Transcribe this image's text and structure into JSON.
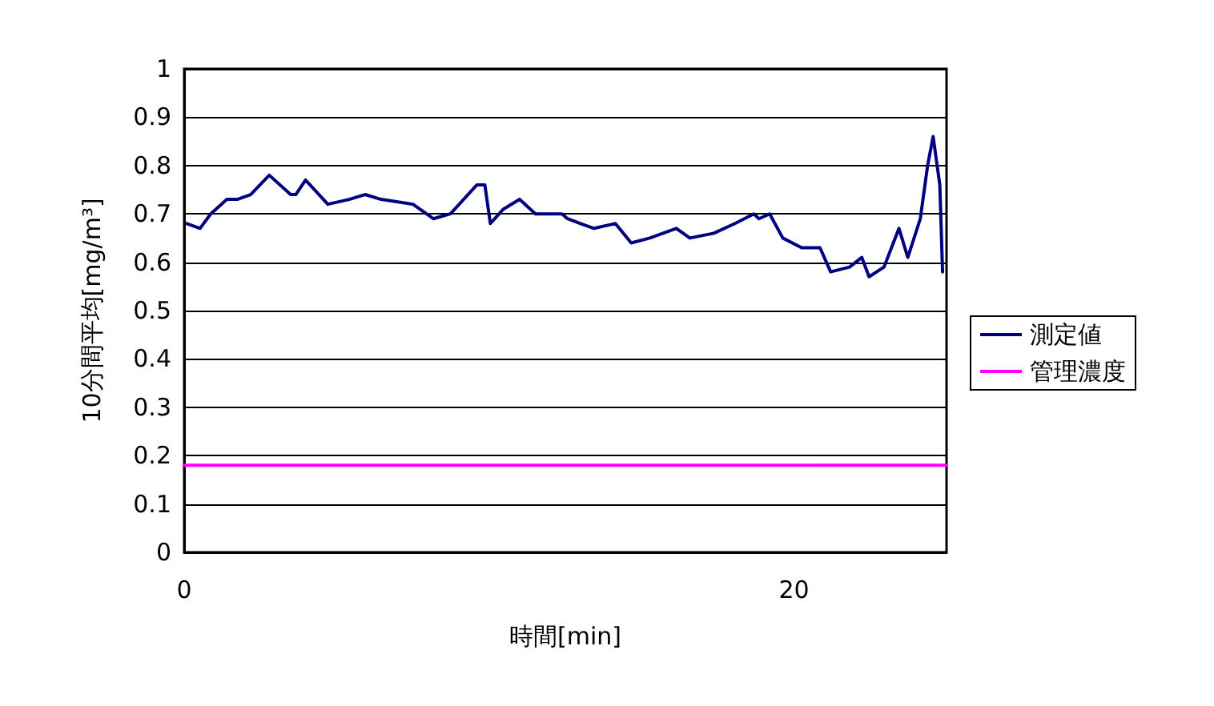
{
  "chart_data": {
    "type": "line",
    "xlabel": "時間[min]",
    "ylabel": "10分間平均[mg/m³]",
    "xlim": [
      0,
      25
    ],
    "xticks": [
      0,
      20
    ],
    "ylim": [
      0,
      1
    ],
    "yticks": [
      0,
      0.1,
      0.2,
      0.3,
      0.4,
      0.5,
      0.6,
      0.7,
      0.8,
      0.9,
      1
    ],
    "grid": "y",
    "legend": "right",
    "marker": "none",
    "line_style": "solid",
    "series": [
      {
        "name": "測定値",
        "color": "#000080",
        "x": [
          0.09,
          0.52,
          0.87,
          1.4,
          1.74,
          2.18,
          2.79,
          3.49,
          3.66,
          3.98,
          4.71,
          5.41,
          5.93,
          6.46,
          7.5,
          8.17,
          8.73,
          9.6,
          9.86,
          10.04,
          10.47,
          11.0,
          11.52,
          12.39,
          12.57,
          13.0,
          13.44,
          14.14,
          14.66,
          15.27,
          16.14,
          16.58,
          17.37,
          18.06,
          18.68,
          18.85,
          19.2,
          19.63,
          20.25,
          20.85,
          21.2,
          21.82,
          22.22,
          22.46,
          22.95,
          23.44,
          23.73,
          24.14,
          24.38,
          24.56,
          24.78,
          24.87
        ],
        "values": [
          0.68,
          0.67,
          0.7,
          0.73,
          0.73,
          0.74,
          0.78,
          0.74,
          0.74,
          0.77,
          0.72,
          0.73,
          0.74,
          0.73,
          0.72,
          0.69,
          0.7,
          0.76,
          0.76,
          0.68,
          0.71,
          0.73,
          0.7,
          0.7,
          0.69,
          0.68,
          0.67,
          0.68,
          0.64,
          0.65,
          0.67,
          0.65,
          0.66,
          0.68,
          0.7,
          0.69,
          0.7,
          0.65,
          0.63,
          0.63,
          0.58,
          0.59,
          0.61,
          0.57,
          0.59,
          0.67,
          0.61,
          0.69,
          0.8,
          0.86,
          0.76,
          0.58
        ]
      },
      {
        "name": "管理濃度",
        "color": "#ff00ff",
        "x": [
          0,
          25
        ],
        "values": [
          0.18,
          0.18
        ]
      }
    ]
  }
}
